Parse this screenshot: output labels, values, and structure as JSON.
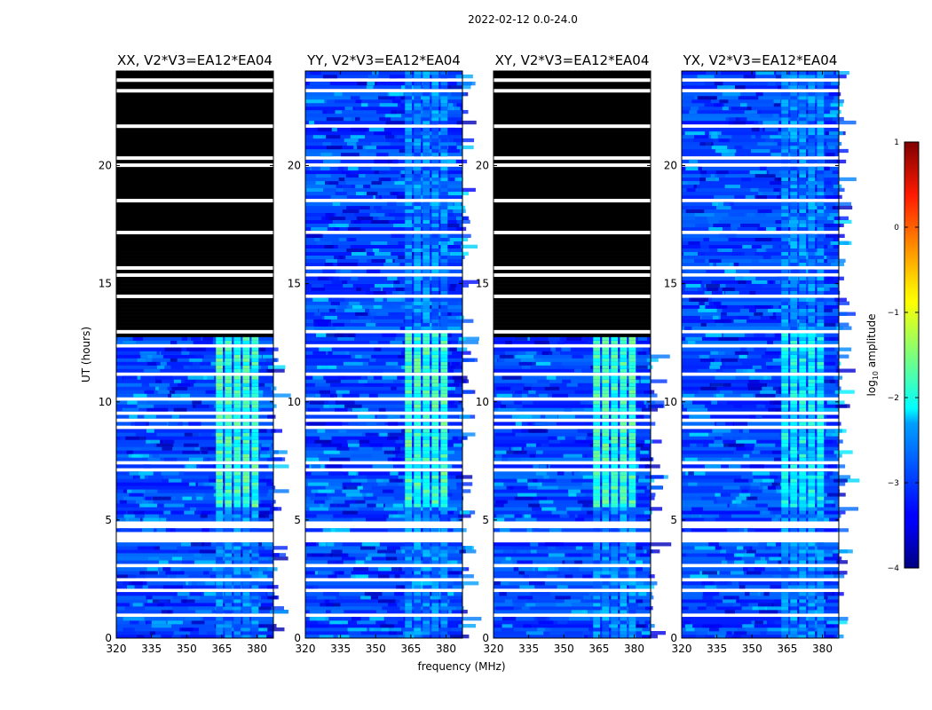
{
  "figure_title": "2022-02-12 0.0-24.0",
  "colorbar": {
    "label_main": "log",
    "label_sub": "10",
    "label_tail": " amplitude",
    "ticks": [
      1,
      0,
      -1,
      -2,
      -3,
      -4
    ],
    "tick_labels": [
      "1",
      "0",
      "−1",
      "−2",
      "−3",
      "−4"
    ],
    "vmin": -4,
    "vmax": 1,
    "colormap": "jet"
  },
  "chart_data": [
    {
      "type": "heatmap",
      "title": "XX, V2*V3=EA12*EA04",
      "xlabel": "",
      "ylabel": "UT (hours)",
      "xlim": [
        320,
        387
      ],
      "ylim": [
        0,
        24
      ],
      "xticks": [
        320,
        335,
        350,
        365,
        380
      ],
      "yticks": [
        0,
        5,
        10,
        15,
        20
      ],
      "rfi_band_mhz": [
        362,
        382
      ],
      "flagged_hours": [
        [
          12.8,
          24.0
        ]
      ],
      "signal_hours": [
        [
          0,
          12.7
        ]
      ],
      "peak_log10_amplitude": -1.2
    },
    {
      "type": "heatmap",
      "title": "YY, V2*V3=EA12*EA04",
      "xlabel": "",
      "ylabel": "",
      "xlim": [
        320,
        387
      ],
      "ylim": [
        0,
        24
      ],
      "xticks": [
        320,
        335,
        350,
        365,
        380
      ],
      "yticks": [
        0,
        5,
        10,
        15,
        20
      ],
      "rfi_band_mhz": [
        362,
        382
      ],
      "flagged_hours": [],
      "signal_hours": [
        [
          0,
          24
        ]
      ],
      "peak_log10_amplitude": -1.2
    },
    {
      "type": "heatmap",
      "title": "XY, V2*V3=EA12*EA04",
      "xlabel": "frequency (MHz)",
      "ylabel": "",
      "xlim": [
        320,
        387
      ],
      "ylim": [
        0,
        24
      ],
      "xticks": [
        320,
        335,
        350,
        365,
        380
      ],
      "yticks": [
        0,
        5,
        10,
        15,
        20
      ],
      "rfi_band_mhz": [
        362,
        382
      ],
      "flagged_hours": [
        [
          12.8,
          24.0
        ]
      ],
      "signal_hours": [
        [
          0,
          12.7
        ]
      ],
      "peak_log10_amplitude": -1.2
    },
    {
      "type": "heatmap",
      "title": "YX, V2*V3=EA12*EA04",
      "xlabel": "",
      "ylabel": "",
      "xlim": [
        320,
        387
      ],
      "ylim": [
        0,
        24
      ],
      "xticks": [
        320,
        335,
        350,
        365,
        380
      ],
      "yticks": [
        0,
        5,
        10,
        15,
        20
      ],
      "rfi_band_mhz": [
        362,
        382
      ],
      "flagged_hours": [],
      "signal_hours": [
        [
          0,
          24
        ]
      ],
      "peak_log10_amplitude": -1.5
    }
  ]
}
